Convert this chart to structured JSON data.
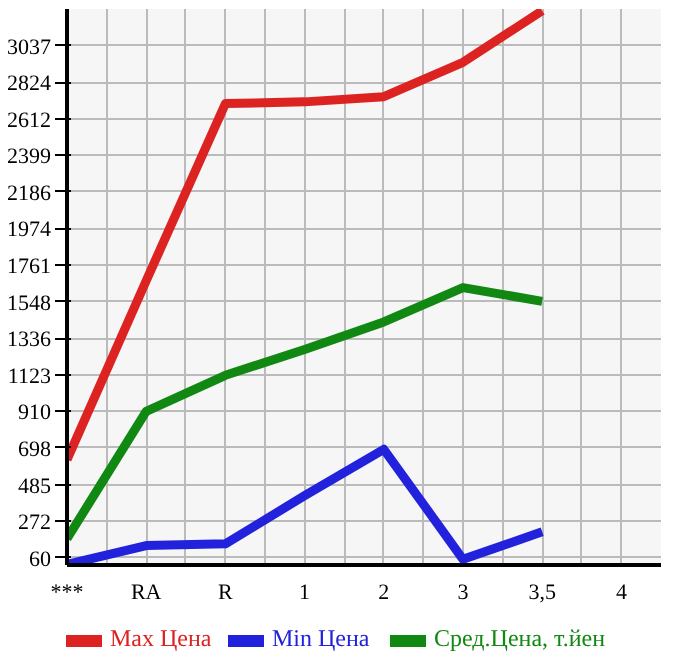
{
  "chart_data": {
    "type": "line",
    "categories": [
      "***",
      "RA",
      "R",
      "1",
      "2",
      "3",
      "3,5",
      "4"
    ],
    "series": [
      {
        "name": "Max Цена",
        "color": "#dd2222",
        "values": [
          630,
          1670,
          2700,
          2710,
          2740,
          2940,
          3240,
          null
        ]
      },
      {
        "name": "Min Цена",
        "color": "#2222dd",
        "values": [
          20,
          130,
          140,
          420,
          690,
          50,
          210,
          null
        ]
      },
      {
        "name": "Сред.Цена, т.йен",
        "color": "#118811",
        "values": [
          170,
          910,
          1120,
          1270,
          1430,
          1630,
          1550,
          null
        ]
      }
    ],
    "ylim": [
      17,
      3250
    ],
    "yticks": [
      60,
      272,
      485,
      698,
      910,
      1123,
      1336,
      1548,
      1761,
      1974,
      2186,
      2399,
      2612,
      2824,
      3037
    ],
    "grid": true,
    "legend": "bottom",
    "marker": "none",
    "line_style": "solid"
  }
}
